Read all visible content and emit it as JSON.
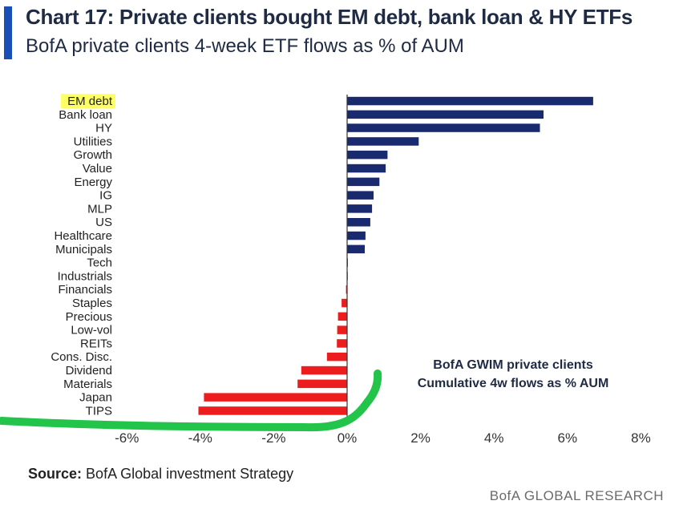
{
  "header": {
    "title": "Chart 17: Private clients bought EM debt, bank loan & HY ETFs",
    "subtitle": "BofA private clients 4-week ETF flows as % of AUM",
    "accent_color": "#1b4fb8"
  },
  "annotation": {
    "line1": "BofA GWIM private clients",
    "line2": "Cumulative 4w flows as % AUM"
  },
  "footer": {
    "source_label": "Source:",
    "source_text": "BofA Global investment Strategy",
    "brand": "BofA GLOBAL RESEARCH"
  },
  "chart_data": {
    "type": "bar",
    "orientation": "horizontal",
    "categories": [
      "EM debt",
      "Bank loan",
      "HY",
      "Utilities",
      "Growth",
      "Value",
      "Energy",
      "IG",
      "MLP",
      "US",
      "Healthcare",
      "Municipals",
      "Tech",
      "Industrials",
      "Financials",
      "Staples",
      "Precious",
      "Low-vol",
      "REITs",
      "Cons. Disc.",
      "Dividend",
      "Materials",
      "Japan",
      "TIPS"
    ],
    "values": [
      6.7,
      5.35,
      5.25,
      1.95,
      1.1,
      1.05,
      0.88,
      0.72,
      0.68,
      0.63,
      0.5,
      0.48,
      0.02,
      0.01,
      -0.03,
      -0.15,
      -0.25,
      -0.27,
      -0.28,
      -0.55,
      -1.25,
      -1.35,
      -3.9,
      -4.05
    ],
    "highlighted_category": "EM debt",
    "highlight_color": "#ffff66",
    "xlim": [
      -6,
      8
    ],
    "xticks": [
      "-6%",
      "-4%",
      "-2%",
      "0%",
      "2%",
      "4%",
      "6%",
      "8%"
    ],
    "positive_color": "#1a2a6e",
    "negative_color": "#ee1d1d",
    "grid": false,
    "markup_color": "#22c44a"
  }
}
